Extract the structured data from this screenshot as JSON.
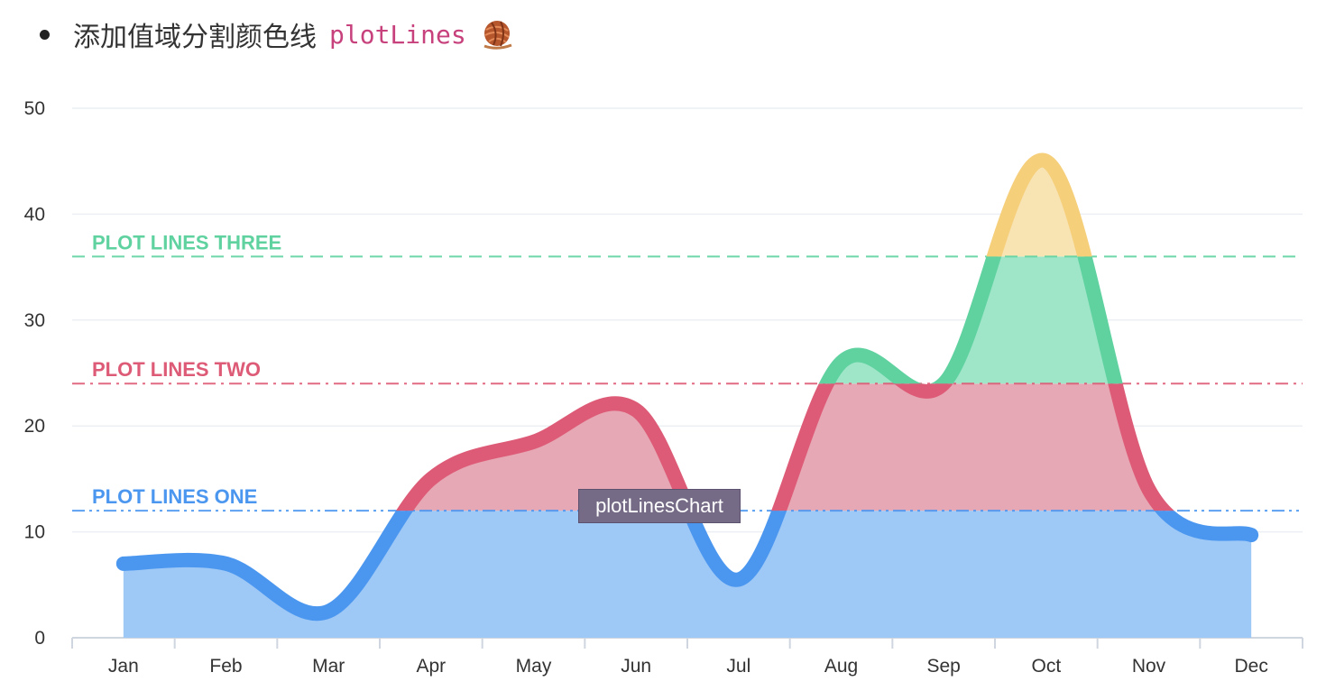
{
  "heading": {
    "text": "添加值域分割颜色线",
    "code": "plotLines",
    "icon": "yarn-ball-icon"
  },
  "tooltip": {
    "text": "plotLinesChart"
  },
  "chart_data": {
    "type": "area",
    "categories": [
      "Jan",
      "Feb",
      "Mar",
      "Apr",
      "May",
      "Jun",
      "Jul",
      "Aug",
      "Sep",
      "Oct",
      "Nov",
      "Dec"
    ],
    "series": [
      {
        "name": "plotLinesChart",
        "values": [
          7,
          7,
          2.5,
          15,
          18.5,
          21.5,
          5.5,
          26,
          24,
          45,
          14,
          9.7
        ]
      }
    ],
    "ylim": [
      0,
      50
    ],
    "yticks": [
      0,
      10,
      20,
      30,
      40,
      50
    ],
    "grid": true,
    "plot_lines": [
      {
        "label": "PLOT LINES ONE",
        "value": 12,
        "color": "#4b97f0",
        "style": "dash-dot-dot"
      },
      {
        "label": "PLOT LINES TWO",
        "value": 24,
        "color": "#dd5b76",
        "style": "dash-dot"
      },
      {
        "label": "PLOT LINES THREE",
        "value": 36,
        "color": "#5fd2a0",
        "style": "dash"
      }
    ],
    "zone_colors": {
      "below_one": "#4b97f0",
      "one_to_two": "#dd5b76",
      "two_to_three": "#5fd2a0",
      "above_three": "#f6cf7b"
    },
    "zone_fill_colors": {
      "below_one": "#9ec8f6",
      "one_to_two": "#e6a8b5",
      "two_to_three": "#9fe6c9",
      "above_three": "#f8e3b3"
    }
  }
}
